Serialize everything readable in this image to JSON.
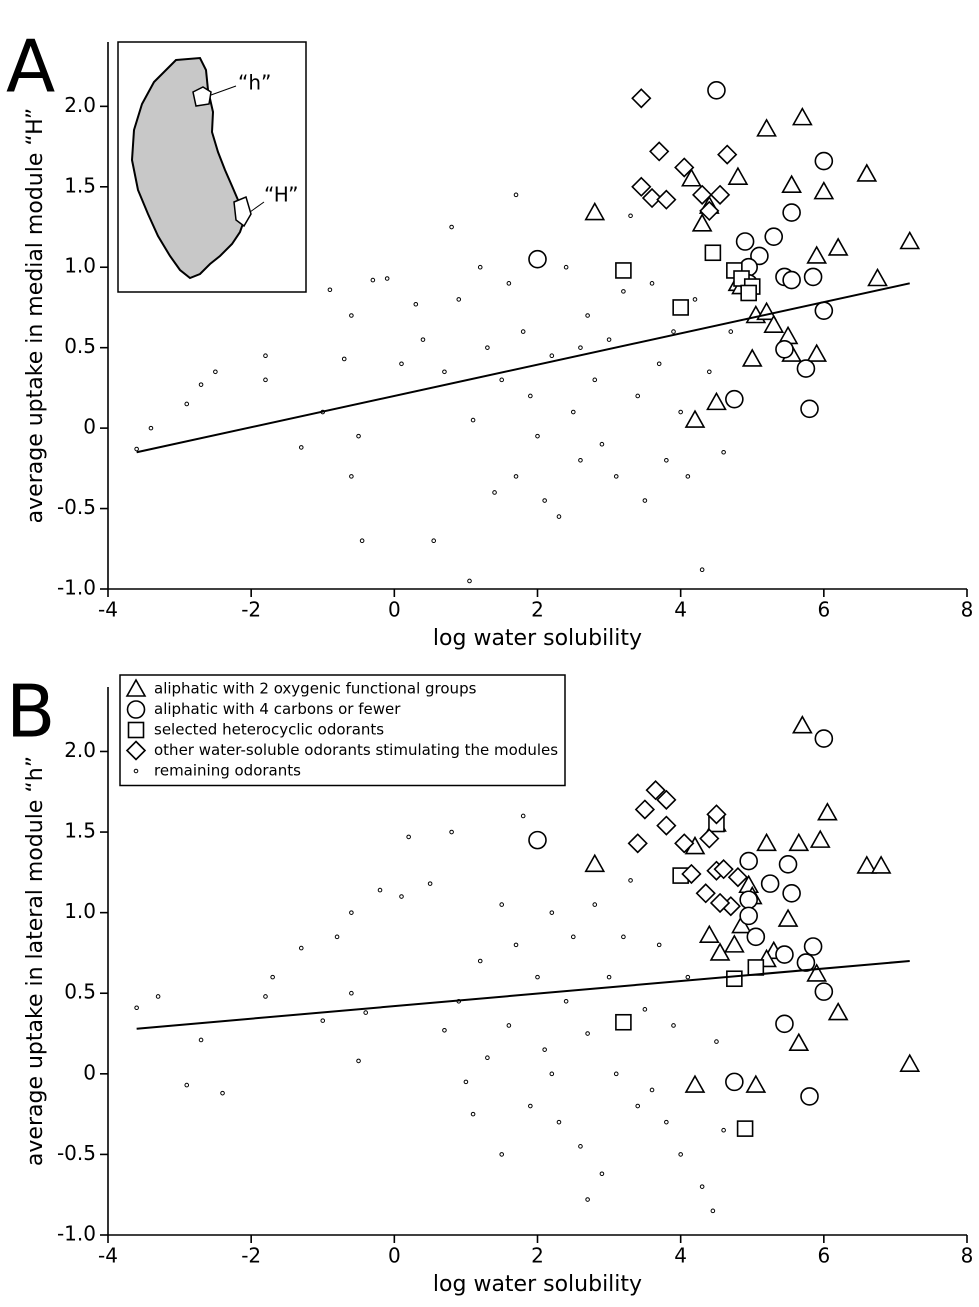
{
  "chart_data": [
    {
      "type": "scatter",
      "panel_label": "A",
      "x_label": "log water solubility",
      "y_label": "average uptake in medial module “H”",
      "inset_labels": [
        "“h”",
        "“H”"
      ],
      "xlim": [
        -4,
        8
      ],
      "xticks": [
        -4,
        -2,
        0,
        2,
        4,
        6,
        8
      ],
      "ylim": [
        -1.0,
        2.4
      ],
      "yticks": [
        {
          "value": -1.0,
          "label": "-1.0"
        },
        -0.5,
        0,
        0.5,
        {
          "value": 1.0,
          "label": "1.0"
        },
        1.5,
        {
          "value": 2.0,
          "label": "2.0"
        }
      ],
      "fit": {
        "x": [
          -3.6,
          7.2
        ],
        "values": [
          -0.15,
          0.9
        ],
        "color": "#000000"
      },
      "series": [
        {
          "marker": "triangle",
          "color": "#000000",
          "x": [
            2.8,
            4.15,
            4.3,
            4.4,
            4.8,
            5.2,
            5.7,
            5.55,
            6.0,
            6.6,
            7.2,
            6.2,
            5.9,
            6.75,
            5.05,
            5.2,
            5.3,
            5.0,
            5.5,
            5.55,
            5.9,
            4.2,
            4.5,
            4.8,
            4.85
          ],
          "values": [
            1.34,
            1.55,
            1.27,
            1.38,
            1.56,
            1.86,
            1.93,
            1.51,
            1.47,
            1.58,
            1.16,
            1.12,
            1.07,
            0.93,
            0.7,
            0.72,
            0.64,
            0.43,
            0.57,
            0.46,
            0.46,
            0.05,
            0.16,
            0.9,
            0.88
          ]
        },
        {
          "marker": "circle",
          "color": "#000000",
          "x": [
            4.5,
            6.0,
            5.55,
            5.3,
            4.9,
            5.1,
            5.45,
            5.55,
            5.85,
            4.95,
            4.95,
            2.0,
            6.0,
            5.45,
            5.75,
            5.8,
            4.75
          ],
          "values": [
            2.1,
            1.66,
            1.34,
            1.19,
            1.16,
            1.07,
            0.94,
            0.92,
            0.94,
            1.0,
            0.9,
            1.05,
            0.73,
            0.49,
            0.37,
            0.12,
            0.18
          ]
        },
        {
          "marker": "square",
          "color": "#000000",
          "x": [
            3.2,
            4.45,
            4.0,
            4.75,
            4.85,
            5.0,
            4.95
          ],
          "values": [
            0.98,
            1.09,
            0.75,
            0.98,
            0.93,
            0.88,
            0.84
          ]
        },
        {
          "marker": "diamond",
          "color": "#000000",
          "x": [
            3.45,
            3.7,
            4.05,
            4.55,
            4.65,
            3.45,
            3.6,
            3.8,
            4.3,
            4.4
          ],
          "values": [
            2.05,
            1.72,
            1.62,
            1.45,
            1.7,
            1.5,
            1.43,
            1.42,
            1.45,
            1.35
          ]
        },
        {
          "marker": "dot",
          "color": "#000000",
          "x": [
            -3.6,
            -3.4,
            -2.9,
            -2.7,
            -2.5,
            -1.8,
            -1.8,
            -1.3,
            -1.0,
            -0.9,
            -0.7,
            -0.6,
            -0.6,
            -0.5,
            -0.45,
            -0.3,
            -0.1,
            0.1,
            0.3,
            0.4,
            0.55,
            0.7,
            0.9,
            1.05,
            1.1,
            1.2,
            1.3,
            1.4,
            1.5,
            1.6,
            1.7,
            1.8,
            1.9,
            2.1,
            2.2,
            2.3,
            2.4,
            2.5,
            2.6,
            2.7,
            2.8,
            2.9,
            3.0,
            3.1,
            3.3,
            3.4,
            3.5,
            3.6,
            3.7,
            3.8,
            3.9,
            4.0,
            4.1,
            4.3,
            4.4,
            4.6,
            4.7,
            1.7,
            0.8,
            2.0,
            3.2,
            2.6,
            4.2
          ],
          "values": [
            -0.13,
            0,
            0.15,
            0.27,
            0.35,
            0.45,
            0.3,
            -0.12,
            0.1,
            0.86,
            0.43,
            0.7,
            -0.3,
            -0.05,
            -0.7,
            0.92,
            0.93,
            0.4,
            0.77,
            0.55,
            -0.7,
            0.35,
            0.8,
            -0.95,
            0.05,
            1.0,
            0.5,
            -0.4,
            0.3,
            0.9,
            -0.3,
            0.6,
            0.2,
            -0.45,
            0.45,
            -0.55,
            1.0,
            0.1,
            -0.2,
            0.7,
            0.3,
            -0.1,
            0.55,
            -0.3,
            1.32,
            0.2,
            -0.45,
            0.9,
            0.4,
            -0.2,
            0.6,
            0.1,
            -0.3,
            -0.88,
            0.35,
            -0.15,
            0.6,
            1.45,
            1.25,
            -0.05,
            0.85,
            0.5,
            0.8
          ]
        }
      ]
    },
    {
      "type": "scatter",
      "panel_label": "B",
      "x_label": "log water solubility",
      "y_label": "average uptake in lateral module “h”",
      "legend": "upper left",
      "xlim": [
        -4,
        8
      ],
      "xticks": [
        -4,
        -2,
        0,
        2,
        4,
        6,
        8
      ],
      "ylim": [
        -1.0,
        2.4
      ],
      "yticks": [
        {
          "value": -1.0,
          "label": "-1.0"
        },
        -0.5,
        0,
        0.5,
        {
          "value": 1.0,
          "label": "1.0"
        },
        1.5,
        {
          "value": 2.0,
          "label": "2.0"
        }
      ],
      "fit": {
        "x": [
          -3.6,
          7.2
        ],
        "values": [
          0.28,
          0.7
        ],
        "color": "#000000"
      },
      "series": [
        {
          "name": "aliphatic with 2 oxygenic functional groups",
          "marker": "triangle",
          "color": "#000000",
          "x": [
            2.8,
            4.2,
            4.5,
            5.2,
            5.7,
            5.95,
            6.05,
            5.65,
            6.6,
            6.8,
            4.95,
            5.0,
            4.4,
            4.55,
            4.75,
            4.85,
            5.5,
            5.3,
            5.2,
            5.9,
            6.2,
            5.65,
            7.2,
            4.2,
            5.05
          ],
          "values": [
            1.3,
            1.41,
            1.55,
            1.43,
            2.16,
            1.45,
            1.62,
            1.43,
            1.29,
            1.29,
            1.17,
            1.1,
            0.86,
            0.75,
            0.8,
            0.92,
            0.96,
            0.76,
            0.71,
            0.62,
            0.38,
            0.19,
            0.06,
            -0.07,
            -0.07
          ]
        },
        {
          "name": "aliphatic with 4 carbons or fewer",
          "marker": "circle",
          "color": "#000000",
          "x": [
            6.0,
            2.0,
            4.95,
            5.5,
            5.25,
            5.55,
            4.95,
            4.95,
            5.05,
            5.45,
            5.85,
            5.75,
            6.0,
            5.45,
            4.75,
            5.8
          ],
          "values": [
            2.08,
            1.45,
            1.32,
            1.3,
            1.18,
            1.12,
            1.08,
            0.98,
            0.85,
            0.74,
            0.79,
            0.69,
            0.51,
            0.31,
            -0.05,
            -0.14
          ]
        },
        {
          "name": "selected heterocyclic odorants",
          "marker": "square",
          "color": "#000000",
          "x": [
            4.5,
            4.0,
            4.75,
            5.05,
            3.2,
            4.9
          ],
          "values": [
            1.55,
            1.23,
            0.59,
            0.66,
            0.32,
            -0.34
          ]
        },
        {
          "name": "other water-soluble odorants stimulating the modules",
          "marker": "diamond",
          "color": "#000000",
          "x": [
            3.5,
            3.65,
            3.8,
            3.8,
            4.05,
            4.4,
            4.5,
            3.4,
            4.15,
            4.35,
            4.5,
            4.6,
            4.7,
            4.55,
            4.8
          ],
          "values": [
            1.64,
            1.76,
            1.7,
            1.54,
            1.43,
            1.46,
            1.61,
            1.43,
            1.24,
            1.12,
            1.26,
            1.27,
            1.04,
            1.06,
            1.22
          ]
        },
        {
          "name": "remaining odorants",
          "marker": "dot",
          "color": "#000000",
          "x": [
            -3.6,
            -3.3,
            -2.9,
            -2.7,
            -2.4,
            -1.8,
            -1.7,
            -1.3,
            -1.0,
            -0.8,
            -0.6,
            -0.6,
            -0.5,
            -0.4,
            -0.2,
            0.1,
            0.2,
            0.5,
            0.7,
            0.8,
            0.9,
            1.0,
            1.2,
            1.3,
            1.5,
            1.5,
            1.6,
            1.7,
            1.8,
            1.9,
            2.0,
            2.1,
            2.2,
            2.3,
            2.4,
            2.5,
            2.6,
            2.7,
            2.7,
            2.8,
            2.9,
            3.0,
            3.1,
            3.3,
            3.4,
            3.5,
            3.6,
            3.7,
            3.8,
            3.9,
            4.0,
            4.1,
            4.3,
            4.45,
            4.5,
            4.6,
            1.1,
            2.2,
            3.2
          ],
          "values": [
            0.41,
            0.48,
            -0.07,
            0.21,
            -0.12,
            0.48,
            0.6,
            0.78,
            0.33,
            0.85,
            1.0,
            0.5,
            0.08,
            0.38,
            1.14,
            1.1,
            1.47,
            1.18,
            0.27,
            1.5,
            0.45,
            -0.05,
            0.7,
            0.1,
            1.05,
            -0.5,
            0.3,
            0.8,
            1.6,
            -0.2,
            0.6,
            0.15,
            1.0,
            -0.3,
            0.45,
            0.85,
            -0.45,
            -0.78,
            0.25,
            1.05,
            -0.62,
            0.6,
            0.0,
            1.2,
            -0.2,
            0.4,
            -0.1,
            0.8,
            -0.3,
            0.3,
            -0.5,
            0.6,
            -0.7,
            -0.85,
            0.2,
            -0.35,
            -0.25,
            0.0,
            0.85
          ]
        }
      ]
    }
  ]
}
